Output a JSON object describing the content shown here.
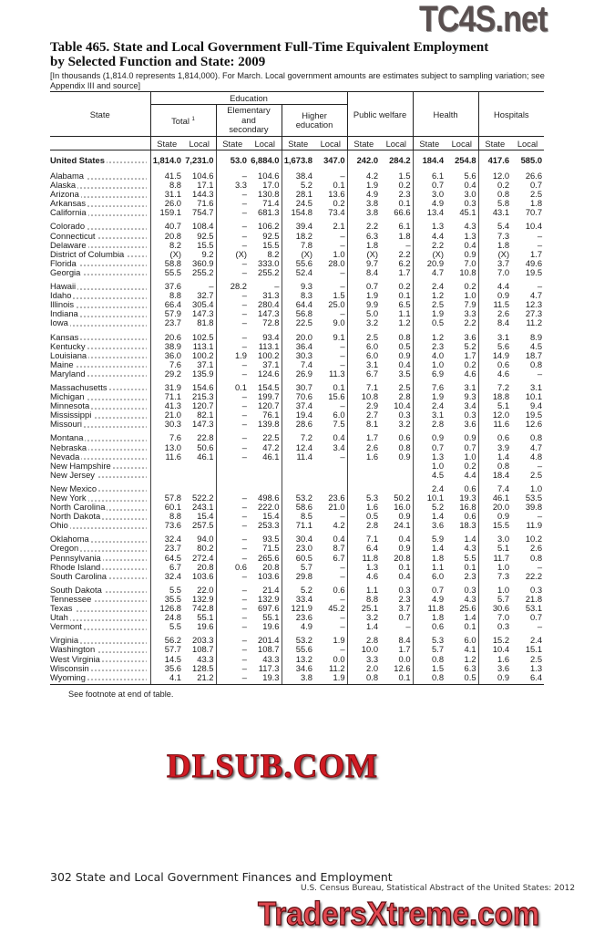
{
  "title": {
    "line1": "Table 465. State and Local Government Full-Time Equivalent Employment",
    "line2": "by Selected Function and State: 2009"
  },
  "headnote": "[In thousands (1,814.0 represents 1,814,000). For March. Local government amounts are estimates subject to sampling variation; see Appendix III and source]",
  "header": {
    "state": "State",
    "education": "Education",
    "total": "Total",
    "total_footnote": "1",
    "elementary": "Elementary and secondary",
    "higher": "Higher education",
    "public_welfare": "Public welfare",
    "health": "Health",
    "hospitals": "Hospitals",
    "sub": [
      "State",
      "Local",
      "State",
      "Local",
      "State",
      "Local",
      "State",
      "Local",
      "State",
      "Local",
      "State",
      "Local"
    ]
  },
  "table": {
    "groups": [
      {
        "rows": [
          {
            "name": "United States",
            "values": [
              "1,814.0",
              "7,231.0",
              "53.0",
              "6,884.0",
              "1,673.8",
              "347.0",
              "242.0",
              "284.2",
              "184.4",
              "254.8",
              "417.6",
              "585.0"
            ]
          }
        ]
      },
      {
        "rows": [
          {
            "name": "Alabama",
            "values": [
              "41.5",
              "104.6",
              "–",
              "104.6",
              "38.4",
              "–",
              "4.2",
              "1.5",
              "6.1",
              "5.6",
              "12.0",
              "26.6"
            ]
          },
          {
            "name": "Alaska",
            "values": [
              "8.8",
              "17.1",
              "3.3",
              "17.0",
              "5.2",
              "0.1",
              "1.9",
              "0.2",
              "0.7",
              "0.4",
              "0.2",
              "0.7"
            ]
          },
          {
            "name": "Arizona",
            "values": [
              "31.1",
              "144.3",
              "–",
              "130.8",
              "28.1",
              "13.6",
              "4.9",
              "2.3",
              "3.0",
              "3.0",
              "0.8",
              "2.5"
            ]
          },
          {
            "name": "Arkansas",
            "values": [
              "26.0",
              "71.6",
              "–",
              "71.4",
              "24.5",
              "0.2",
              "3.8",
              "0.1",
              "4.9",
              "0.3",
              "5.8",
              "1.8"
            ]
          },
          {
            "name": "California",
            "values": [
              "159.1",
              "754.7",
              "–",
              "681.3",
              "154.8",
              "73.4",
              "3.8",
              "66.6",
              "13.4",
              "45.1",
              "43.1",
              "70.7"
            ]
          }
        ]
      },
      {
        "rows": [
          {
            "name": "Colorado",
            "values": [
              "40.7",
              "108.4",
              "–",
              "106.2",
              "39.4",
              "2.1",
              "2.2",
              "6.1",
              "1.3",
              "4.3",
              "5.4",
              "10.4"
            ]
          },
          {
            "name": "Connecticut",
            "values": [
              "20.8",
              "92.5",
              "–",
              "92.5",
              "18.2",
              "–",
              "6.3",
              "1.8",
              "4.4",
              "1.3",
              "7.3",
              "–"
            ]
          },
          {
            "name": "Delaware",
            "values": [
              "8.2",
              "15.5",
              "–",
              "15.5",
              "7.8",
              "–",
              "1.8",
              "–",
              "2.2",
              "0.4",
              "1.8",
              "–"
            ]
          },
          {
            "name": "District of Columbia",
            "values": [
              "(X)",
              "9.2",
              "(X)",
              "8.2",
              "(X)",
              "1.0",
              "(X)",
              "2.2",
              "(X)",
              "0.9",
              "(X)",
              "1.7"
            ]
          },
          {
            "name": "Florida",
            "values": [
              "58.8",
              "360.9",
              "–",
              "333.0",
              "55.6",
              "28.0",
              "9.7",
              "6.2",
              "20.9",
              "7.0",
              "3.7",
              "49.6"
            ]
          },
          {
            "name": "Georgia",
            "values": [
              "55.5",
              "255.2",
              "–",
              "255.2",
              "52.4",
              "–",
              "8.4",
              "1.7",
              "4.7",
              "10.8",
              "7.0",
              "19.5"
            ]
          }
        ]
      },
      {
        "rows": [
          {
            "name": "Hawaii",
            "values": [
              "37.6",
              "–",
              "28.2",
              "–",
              "9.3",
              "–",
              "0.7",
              "0.2",
              "2.4",
              "0.2",
              "4.4",
              "–"
            ]
          },
          {
            "name": "Idaho",
            "values": [
              "8.8",
              "32.7",
              "–",
              "31.3",
              "8.3",
              "1.5",
              "1.9",
              "0.1",
              "1.2",
              "1.0",
              "0.9",
              "4.7"
            ]
          },
          {
            "name": "Illinois",
            "values": [
              "66.4",
              "305.4",
              "–",
              "280.4",
              "64.4",
              "25.0",
              "9.9",
              "6.5",
              "2.5",
              "7.9",
              "11.5",
              "12.3"
            ]
          },
          {
            "name": "Indiana",
            "values": [
              "57.9",
              "147.3",
              "–",
              "147.3",
              "56.8",
              "–",
              "5.0",
              "1.1",
              "1.9",
              "3.3",
              "2.6",
              "27.3"
            ]
          },
          {
            "name": "Iowa",
            "values": [
              "23.7",
              "81.8",
              "–",
              "72.8",
              "22.5",
              "9.0",
              "3.2",
              "1.2",
              "0.5",
              "2.2",
              "8.4",
              "11.2"
            ]
          }
        ]
      },
      {
        "rows": [
          {
            "name": "Kansas",
            "values": [
              "20.6",
              "102.5",
              "–",
              "93.4",
              "20.0",
              "9.1",
              "2.5",
              "0.8",
              "1.2",
              "3.6",
              "3.1",
              "8.9"
            ]
          },
          {
            "name": "Kentucky",
            "values": [
              "38.9",
              "113.1",
              "–",
              "113.1",
              "36.4",
              "–",
              "6.0",
              "0.5",
              "2.3",
              "5.2",
              "5.6",
              "4.5"
            ]
          },
          {
            "name": "Louisiana",
            "values": [
              "36.0",
              "100.2",
              "1.9",
              "100.2",
              "30.3",
              "–",
              "6.0",
              "0.9",
              "4.0",
              "1.7",
              "14.9",
              "18.7"
            ]
          },
          {
            "name": "Maine",
            "values": [
              "7.6",
              "37.1",
              "–",
              "37.1",
              "7.4",
              "–",
              "3.1",
              "0.4",
              "1.0",
              "0.2",
              "0.6",
              "0.8"
            ]
          },
          {
            "name": "Maryland",
            "values": [
              "29.2",
              "135.9",
              "–",
              "124.6",
              "26.9",
              "11.3",
              "6.7",
              "3.5",
              "6.9",
              "4.6",
              "4.6",
              "–"
            ]
          }
        ]
      },
      {
        "rows": [
          {
            "name": "Massachusetts",
            "values": [
              "31.9",
              "154.6",
              "0.1",
              "154.5",
              "30.7",
              "0.1",
              "7.1",
              "2.5",
              "7.6",
              "3.1",
              "7.2",
              "3.1"
            ]
          },
          {
            "name": "Michigan",
            "values": [
              "71.1",
              "215.3",
              "–",
              "199.7",
              "70.6",
              "15.6",
              "10.8",
              "2.8",
              "1.9",
              "9.3",
              "18.8",
              "10.1"
            ]
          },
          {
            "name": "Minnesota",
            "values": [
              "41.3",
              "120.7",
              "–",
              "120.7",
              "37.4",
              "–",
              "2.9",
              "10.4",
              "2.4",
              "3.4",
              "5.1",
              "9.4"
            ]
          },
          {
            "name": "Mississippi",
            "values": [
              "21.0",
              "82.1",
              "–",
              "76.1",
              "19.4",
              "6.0",
              "2.7",
              "0.3",
              "3.1",
              "0.3",
              "12.0",
              "19.5"
            ]
          },
          {
            "name": "Missouri",
            "values": [
              "30.3",
              "147.3",
              "–",
              "139.8",
              "28.6",
              "7.5",
              "8.1",
              "3.2",
              "2.8",
              "3.6",
              "11.6",
              "12.6"
            ]
          }
        ]
      },
      {
        "rows": [
          {
            "name": "Montana",
            "values": [
              "7.6",
              "22.8",
              "–",
              "22.5",
              "7.2",
              "0.4",
              "1.7",
              "0.6",
              "0.9",
              "0.9",
              "0.6",
              "0.8"
            ]
          },
          {
            "name": "Nebraska",
            "values": [
              "13.0",
              "50.6",
              "–",
              "47.2",
              "12.4",
              "3.4",
              "2.6",
              "0.8",
              "0.7",
              "0.7",
              "3.9",
              "4.7"
            ]
          },
          {
            "name": "Nevada",
            "values": [
              "11.6",
              "46.1",
              "–",
              "46.1",
              "11.4",
              "–",
              "1.6",
              "0.9",
              "1.3",
              "1.0",
              "1.4",
              "4.8"
            ]
          },
          {
            "name": "New Hampshire",
            "values": [
              "",
              "",
              "",
              "",
              "",
              "",
              "",
              "",
              "1.0",
              "0.2",
              "0.8",
              "–"
            ]
          },
          {
            "name": "New Jersey",
            "values": [
              "",
              "",
              "",
              "",
              "",
              "",
              "",
              "",
              "4.5",
              "4.4",
              "18.4",
              "2.5"
            ]
          }
        ]
      },
      {
        "rows": [
          {
            "name": "New Mexico",
            "values": [
              "",
              "",
              "",
              "",
              "",
              "",
              "",
              "",
              "2.4",
              "0.6",
              "7.4",
              "1.0"
            ]
          },
          {
            "name": "New York",
            "values": [
              "57.8",
              "522.2",
              "–",
              "498.6",
              "53.2",
              "23.6",
              "5.3",
              "50.2",
              "10.1",
              "19.3",
              "46.1",
              "53.5"
            ]
          },
          {
            "name": "North Carolina",
            "values": [
              "60.1",
              "243.1",
              "–",
              "222.0",
              "58.6",
              "21.0",
              "1.6",
              "16.0",
              "5.2",
              "16.8",
              "20.0",
              "39.8"
            ]
          },
          {
            "name": "North Dakota",
            "values": [
              "8.8",
              "15.4",
              "–",
              "15.4",
              "8.5",
              "–",
              "0.5",
              "0.9",
              "1.4",
              "0.6",
              "0.9",
              "–"
            ]
          },
          {
            "name": "Ohio",
            "values": [
              "73.6",
              "257.5",
              "–",
              "253.3",
              "71.1",
              "4.2",
              "2.8",
              "24.1",
              "3.6",
              "18.3",
              "15.5",
              "11.9"
            ]
          }
        ]
      },
      {
        "rows": [
          {
            "name": "Oklahoma",
            "values": [
              "32.4",
              "94.0",
              "–",
              "93.5",
              "30.4",
              "0.4",
              "7.1",
              "0.4",
              "5.9",
              "1.4",
              "3.0",
              "10.2"
            ]
          },
          {
            "name": "Oregon",
            "values": [
              "23.7",
              "80.2",
              "–",
              "71.5",
              "23.0",
              "8.7",
              "6.4",
              "0.9",
              "1.4",
              "4.3",
              "5.1",
              "2.6"
            ]
          },
          {
            "name": "Pennsylvania",
            "values": [
              "64.5",
              "272.4",
              "–",
              "265.6",
              "60.5",
              "6.7",
              "11.8",
              "20.8",
              "1.8",
              "5.5",
              "11.7",
              "0.8"
            ]
          },
          {
            "name": "Rhode Island",
            "values": [
              "6.7",
              "20.8",
              "0.6",
              "20.8",
              "5.7",
              "–",
              "1.3",
              "0.1",
              "1.1",
              "0.1",
              "1.0",
              "–"
            ]
          },
          {
            "name": "South Carolina",
            "values": [
              "32.4",
              "103.6",
              "–",
              "103.6",
              "29.8",
              "–",
              "4.6",
              "0.4",
              "6.0",
              "2.3",
              "7.3",
              "22.2"
            ]
          }
        ]
      },
      {
        "rows": [
          {
            "name": "South Dakota",
            "values": [
              "5.5",
              "22.0",
              "–",
              "21.4",
              "5.2",
              "0.6",
              "1.1",
              "0.3",
              "0.7",
              "0.3",
              "1.0",
              "0.3"
            ]
          },
          {
            "name": "Tennessee",
            "values": [
              "35.5",
              "132.9",
              "–",
              "132.9",
              "33.4",
              "–",
              "8.8",
              "2.3",
              "4.9",
              "4.3",
              "5.7",
              "21.8"
            ]
          },
          {
            "name": "Texas",
            "values": [
              "126.8",
              "742.8",
              "–",
              "697.6",
              "121.9",
              "45.2",
              "25.1",
              "3.7",
              "11.8",
              "25.6",
              "30.6",
              "53.1"
            ]
          },
          {
            "name": "Utah",
            "values": [
              "24.8",
              "55.1",
              "–",
              "55.1",
              "23.6",
              "–",
              "3.2",
              "0.7",
              "1.8",
              "1.4",
              "7.0",
              "0.7"
            ]
          },
          {
            "name": "Vermont",
            "values": [
              "5.5",
              "19.6",
              "–",
              "19.6",
              "4.9",
              "–",
              "1.4",
              "–",
              "0.6",
              "0.1",
              "0.3",
              "–"
            ]
          }
        ]
      },
      {
        "rows": [
          {
            "name": "Virginia",
            "values": [
              "56.2",
              "203.3",
              "–",
              "201.4",
              "53.2",
              "1.9",
              "2.8",
              "8.4",
              "5.3",
              "6.0",
              "15.2",
              "2.4"
            ]
          },
          {
            "name": "Washington",
            "values": [
              "57.7",
              "108.7",
              "–",
              "108.7",
              "55.6",
              "–",
              "10.0",
              "1.7",
              "5.7",
              "4.1",
              "10.4",
              "15.1"
            ]
          },
          {
            "name": "West Virginia",
            "values": [
              "14.5",
              "43.3",
              "–",
              "43.3",
              "13.2",
              "0.0",
              "3.3",
              "0.0",
              "0.8",
              "1.2",
              "1.6",
              "2.5"
            ]
          },
          {
            "name": "Wisconsin",
            "values": [
              "35.6",
              "128.5",
              "–",
              "117.3",
              "34.6",
              "11.2",
              "2.0",
              "12.6",
              "1.5",
              "6.3",
              "3.6",
              "1.3"
            ]
          },
          {
            "name": "Wyoming",
            "values": [
              "4.1",
              "21.2",
              "–",
              "19.3",
              "3.8",
              "1.9",
              "0.8",
              "0.1",
              "0.8",
              "0.5",
              "0.9",
              "6.4"
            ]
          }
        ]
      }
    ]
  },
  "footnote_ref": "See footnote at end of table.",
  "page_footer": "302  State and Local Government Finances and Employment",
  "source_line": "U.S. Census Bureau, Statistical Abstract of the United States: 2012",
  "watermarks": {
    "top": "TC4S.net",
    "middle": "DLSUB.COM",
    "bottom": "TradersXtreme.com"
  }
}
